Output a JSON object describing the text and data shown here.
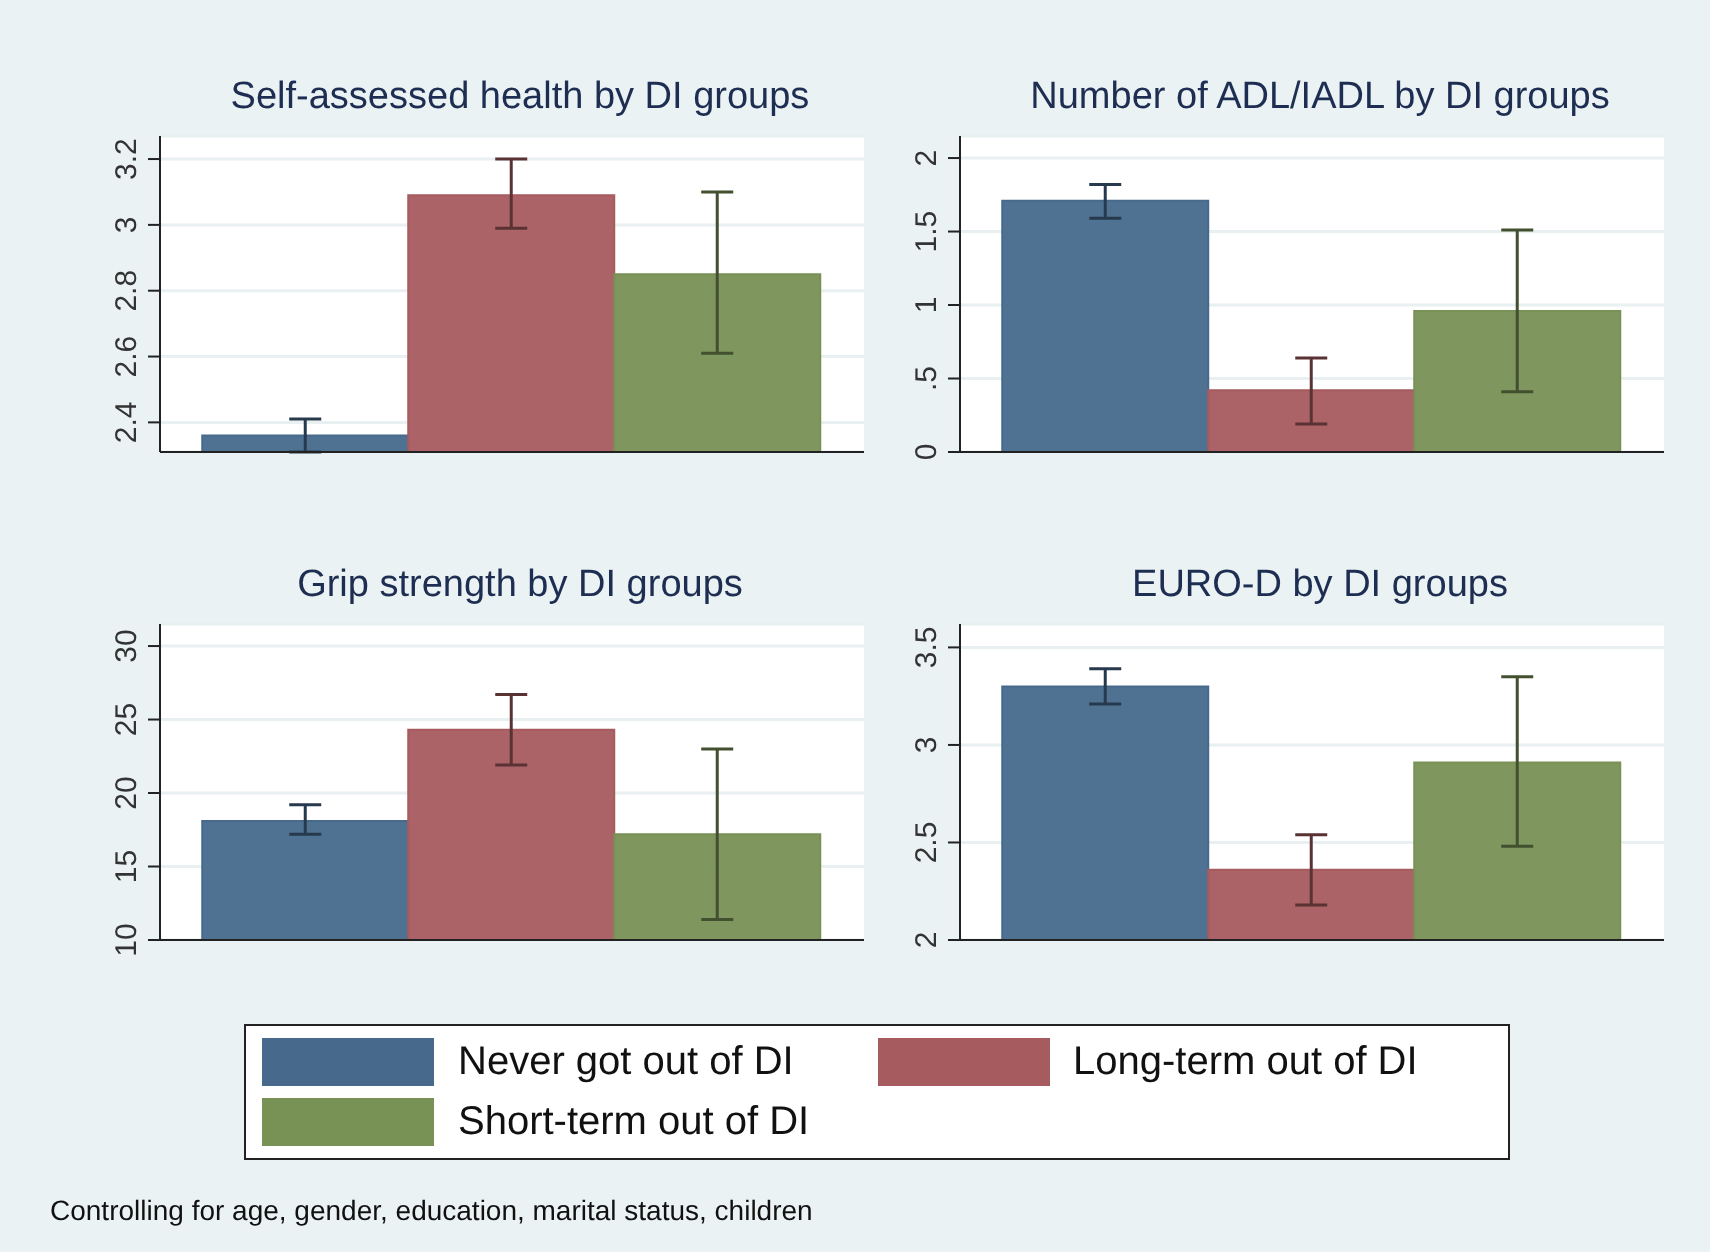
{
  "chart_data": [
    {
      "type": "bar",
      "title": "Self-assessed health by DI groups",
      "categories": [
        null
      ],
      "ylim": [
        2.31,
        3.27
      ],
      "yticks": [
        2.4,
        2.6,
        2.8,
        3,
        3.2
      ],
      "grid": "y",
      "legend": "bottom",
      "series": [
        {
          "name": "Never got out of DI",
          "color": "#476a8c",
          "values": [
            2.36
          ],
          "errors": [
            [
              2.31,
              2.41
            ]
          ]
        },
        {
          "name": "Long-term out of DI",
          "color": "#a65b5f",
          "values": [
            3.09
          ],
          "errors": [
            [
              2.99,
              3.2
            ]
          ]
        },
        {
          "name": "Short-term out of DI",
          "color": "#789155",
          "values": [
            2.85
          ],
          "errors": [
            [
              2.61,
              3.1
            ]
          ]
        }
      ]
    },
    {
      "type": "bar",
      "title": "Number of ADL/IADL by DI groups",
      "categories": [
        null
      ],
      "ylim": [
        0,
        2.15
      ],
      "yticks": [
        0,
        {
          "value": 0.5,
          "label": ".5"
        },
        1,
        1.5,
        2
      ],
      "grid": "y",
      "series": [
        {
          "color": "#476a8c",
          "values": [
            1.71
          ],
          "errors": [
            [
              1.59,
              1.82
            ]
          ]
        },
        {
          "color": "#a65b5f",
          "values": [
            0.42
          ],
          "errors": [
            [
              0.19,
              0.64
            ]
          ]
        },
        {
          "color": "#789155",
          "values": [
            0.96
          ],
          "errors": [
            [
              0.41,
              1.51
            ]
          ]
        }
      ]
    },
    {
      "type": "bar",
      "title": "Grip strength by DI groups",
      "categories": [
        null
      ],
      "ylim": [
        10,
        31.5
      ],
      "yticks": [
        10,
        15,
        20,
        25,
        30
      ],
      "grid": "y",
      "series": [
        {
          "color": "#476a8c",
          "values": [
            18.1
          ],
          "errors": [
            [
              17.2,
              19.2
            ]
          ]
        },
        {
          "color": "#a65b5f",
          "values": [
            24.3
          ],
          "errors": [
            [
              21.9,
              26.7
            ]
          ]
        },
        {
          "color": "#789155",
          "values": [
            17.2
          ],
          "errors": [
            [
              11.4,
              23
            ]
          ]
        }
      ]
    },
    {
      "type": "bar",
      "title": "EURO-D by DI groups",
      "categories": [
        null
      ],
      "ylim": [
        2,
        3.62
      ],
      "yticks": [
        2,
        2.5,
        3,
        3.5
      ],
      "grid": "y",
      "annotations": [
        "Controlling for age, gender, education, marital status, children"
      ],
      "series": [
        {
          "color": "#476a8c",
          "values": [
            3.3
          ],
          "errors": [
            [
              3.21,
              3.39
            ]
          ]
        },
        {
          "color": "#a65b5f",
          "values": [
            2.36
          ],
          "errors": [
            [
              2.18,
              2.54
            ]
          ]
        },
        {
          "color": "#789155",
          "values": [
            2.91
          ],
          "errors": [
            [
              2.48,
              3.35
            ]
          ]
        }
      ]
    }
  ]
}
